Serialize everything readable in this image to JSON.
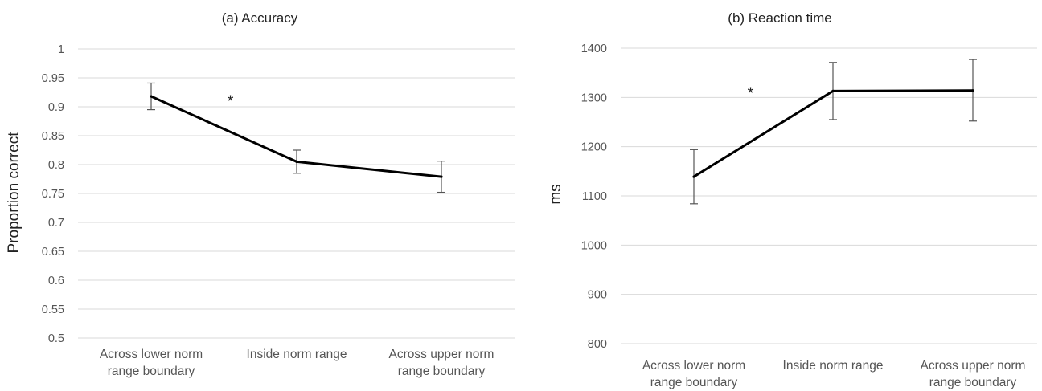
{
  "chart_data": [
    {
      "type": "line",
      "title": "(a)  Accuracy",
      "ylabel": "Proportion correct",
      "xlabel": "",
      "categories": [
        [
          "Across lower norm",
          "range boundary"
        ],
        [
          "Inside norm range"
        ],
        [
          "Across upper norm",
          "range boundary"
        ]
      ],
      "ylim": [
        0.5,
        1
      ],
      "yticks": [
        "0.5",
        "0.55",
        "0.6",
        "0.65",
        "0.7",
        "0.75",
        "0.8",
        "0.85",
        "0.9",
        "0.95",
        "1"
      ],
      "ytick_values": [
        0.5,
        0.55,
        0.6,
        0.65,
        0.7,
        0.75,
        0.8,
        0.85,
        0.9,
        0.95,
        1.0
      ],
      "series": [
        {
          "values": [
            0.918,
            0.805,
            0.779
          ],
          "error_low": [
            0.895,
            0.785,
            0.752
          ],
          "error_high": [
            0.941,
            0.825,
            0.806
          ]
        }
      ],
      "annotations": [
        {
          "text": "*",
          "between": [
            0,
            1
          ]
        }
      ],
      "grid": true
    },
    {
      "type": "line",
      "title": "(b) Reaction time",
      "ylabel": "ms",
      "xlabel": "",
      "categories": [
        [
          "Across lower norm",
          "range boundary"
        ],
        [
          "Inside norm range"
        ],
        [
          "Across upper norm",
          "range boundary"
        ]
      ],
      "ylim": [
        800,
        1400
      ],
      "yticks": [
        "800",
        "900",
        "1000",
        "1100",
        "1200",
        "1300",
        "1400"
      ],
      "ytick_values": [
        800,
        900,
        1000,
        1100,
        1200,
        1300,
        1400
      ],
      "series": [
        {
          "values": [
            1139,
            1313,
            1314
          ],
          "error_low": [
            1084,
            1255,
            1252
          ],
          "error_high": [
            1194,
            1371,
            1377
          ]
        }
      ],
      "annotations": [
        {
          "text": "*",
          "between": [
            0,
            1
          ]
        }
      ],
      "grid": true
    }
  ]
}
